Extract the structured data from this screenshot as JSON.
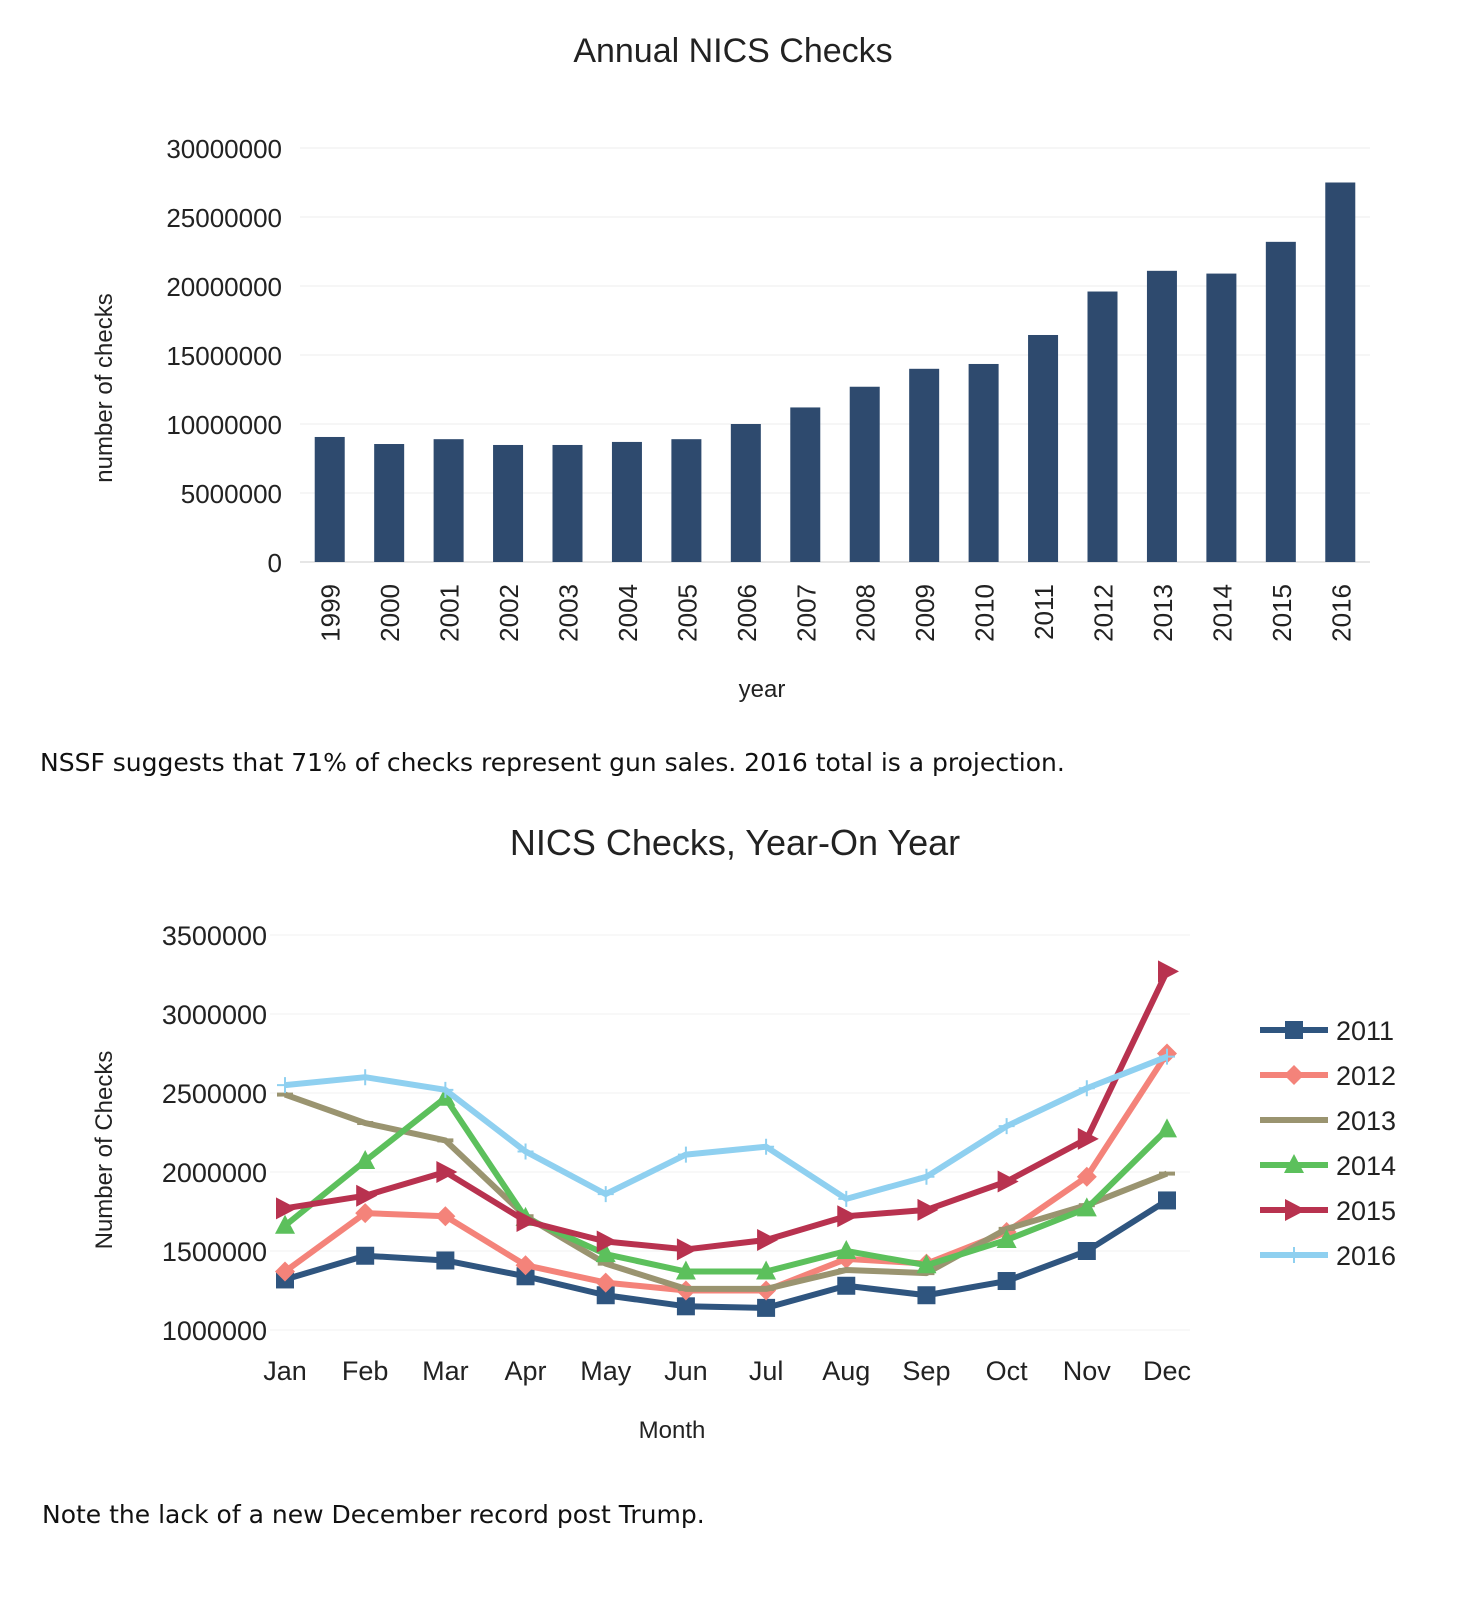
{
  "chart_data": [
    {
      "type": "bar",
      "title": "Annual NICS Checks",
      "xlabel": "year",
      "ylabel": "number of checks",
      "ylim": [
        0,
        30000000
      ],
      "yticks": [
        "0",
        "5000000",
        "10000000",
        "15000000",
        "20000000",
        "25000000",
        "30000000"
      ],
      "grid": true,
      "color": "#2e4a6e",
      "categories": [
        "1999",
        "2000",
        "2001",
        "2002",
        "2003",
        "2004",
        "2005",
        "2006",
        "2007",
        "2008",
        "2009",
        "2010",
        "2011",
        "2012",
        "2013",
        "2014",
        "2015",
        "2016"
      ],
      "values": [
        9060000,
        8550000,
        8900000,
        8480000,
        8480000,
        8700000,
        8900000,
        10000000,
        11200000,
        12700000,
        14000000,
        14350000,
        16450000,
        19600000,
        21100000,
        20900000,
        23200000,
        27500000
      ]
    },
    {
      "type": "line",
      "title": "NICS Checks, Year-On Year",
      "xlabel": "Month",
      "ylabel": "Number of Checks",
      "ylim": [
        1000000,
        3500000
      ],
      "yticks": [
        "1000000",
        "1500000",
        "2000000",
        "2500000",
        "3000000",
        "3500000"
      ],
      "grid": true,
      "legend": "right",
      "categories": [
        "Jan",
        "Feb",
        "Mar",
        "Apr",
        "May",
        "Jun",
        "Jul",
        "Aug",
        "Sep",
        "Oct",
        "Nov",
        "Dec"
      ],
      "series": [
        {
          "name": "2011",
          "color": "#2f557f",
          "marker": "square",
          "values": [
            1320000,
            1470000,
            1440000,
            1340000,
            1220000,
            1150000,
            1140000,
            1280000,
            1220000,
            1310000,
            1500000,
            1820000
          ]
        },
        {
          "name": "2012",
          "color": "#f4837a",
          "marker": "diamond",
          "values": [
            1370000,
            1740000,
            1720000,
            1410000,
            1300000,
            1250000,
            1250000,
            1450000,
            1420000,
            1620000,
            1970000,
            2750000
          ]
        },
        {
          "name": "2013",
          "color": "#9a9470",
          "marker": "dash",
          "values": [
            2490000,
            2310000,
            2200000,
            1720000,
            1420000,
            1260000,
            1260000,
            1380000,
            1360000,
            1640000,
            1790000,
            1990000
          ]
        },
        {
          "name": "2014",
          "color": "#5cc05c",
          "marker": "triangle",
          "values": [
            1660000,
            2070000,
            2470000,
            1710000,
            1480000,
            1370000,
            1370000,
            1500000,
            1410000,
            1570000,
            1770000,
            2270000
          ]
        },
        {
          "name": "2015",
          "color": "#b8324f",
          "marker": "triangle-right",
          "values": [
            1770000,
            1850000,
            2000000,
            1690000,
            1560000,
            1510000,
            1570000,
            1720000,
            1760000,
            1940000,
            2210000,
            3270000
          ]
        },
        {
          "name": "2016",
          "color": "#8fd0f0",
          "marker": "plus",
          "values": [
            2550000,
            2600000,
            2520000,
            2130000,
            1860000,
            2110000,
            2160000,
            1830000,
            1970000,
            2290000,
            2530000,
            2730000
          ]
        }
      ]
    }
  ],
  "notes": {
    "note1": "NSSF suggests that 71% of checks represent gun sales. 2016 total is a projection.",
    "note2": "Note the lack of a new December record post Trump."
  }
}
